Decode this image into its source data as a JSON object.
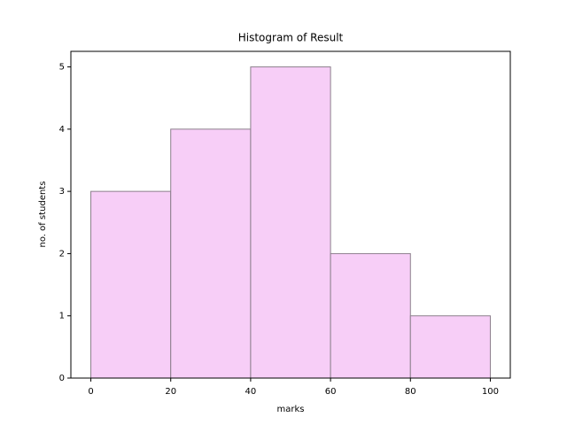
{
  "chart_data": {
    "type": "histogram",
    "title": "Histogram of Result",
    "xlabel": "marks",
    "ylabel": "no. of students",
    "bins": [
      0,
      20,
      40,
      60,
      80,
      100
    ],
    "counts": [
      3,
      4,
      5,
      2,
      1
    ],
    "color": "#f7cef7",
    "edgecolor": "#8c7f8c",
    "xlim": [
      -5,
      105
    ],
    "xticks": [
      0,
      20,
      40,
      60,
      80,
      100
    ],
    "ylim": [
      0,
      5.25
    ],
    "yticks": [
      0,
      1,
      2,
      3,
      4,
      5
    ]
  }
}
